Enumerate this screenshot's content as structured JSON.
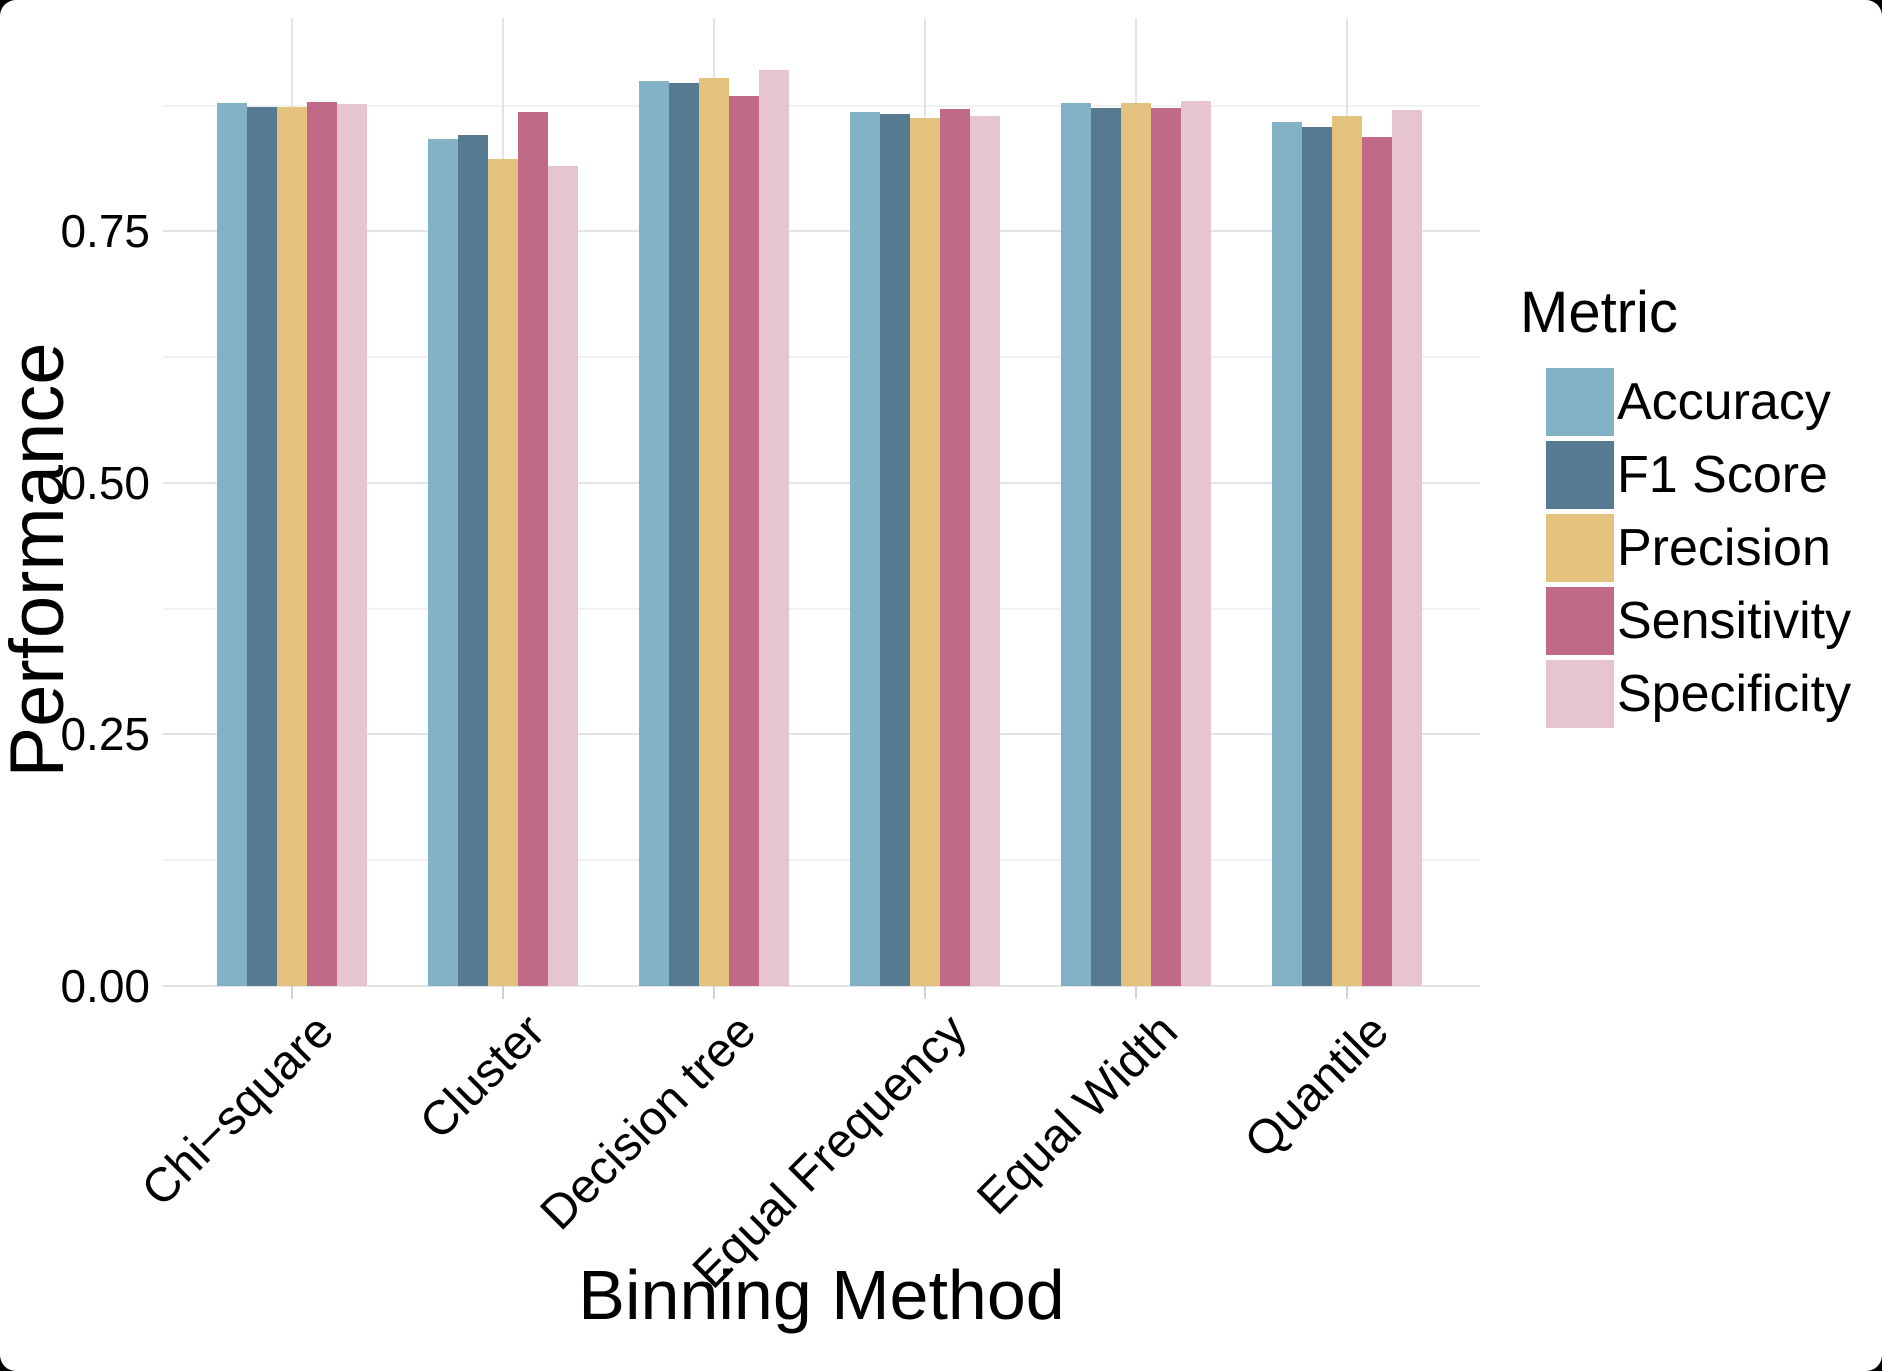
{
  "chart_data": {
    "type": "bar",
    "title": "",
    "xlabel": "Binning Method",
    "ylabel": "Performance",
    "legend_title": "Metric",
    "legend_position": "right",
    "grid": true,
    "background": "#ffffff",
    "categories": [
      "Chi−square",
      "Cluster",
      "Decision tree",
      "Equal Frequency",
      "Equal Width",
      "Quantile"
    ],
    "ytick_labels": [
      "0.00",
      "0.25",
      "0.50",
      "0.75"
    ],
    "yticks": [
      0,
      0.25,
      0.5,
      0.75
    ],
    "minor_yticks": [
      0.125,
      0.375,
      0.625,
      0.875
    ],
    "ylim": [
      0,
      0.962
    ],
    "series": [
      {
        "name": "Accuracy",
        "color": "#83b2c6",
        "values": [
          0.878,
          0.842,
          0.899,
          0.869,
          0.878,
          0.859
        ]
      },
      {
        "name": "F1 Score",
        "color": "#557a91",
        "values": [
          0.874,
          0.846,
          0.897,
          0.867,
          0.873,
          0.854
        ]
      },
      {
        "name": "Precision",
        "color": "#e3c17e",
        "values": [
          0.874,
          0.822,
          0.902,
          0.863,
          0.878,
          0.865
        ]
      },
      {
        "name": "Sensitivity",
        "color": "#c06a87",
        "values": [
          0.879,
          0.869,
          0.884,
          0.872,
          0.873,
          0.844
        ]
      },
      {
        "name": "Specificity",
        "color": "#e6c4d0",
        "values": [
          0.877,
          0.815,
          0.91,
          0.865,
          0.88,
          0.871
        ]
      }
    ]
  }
}
